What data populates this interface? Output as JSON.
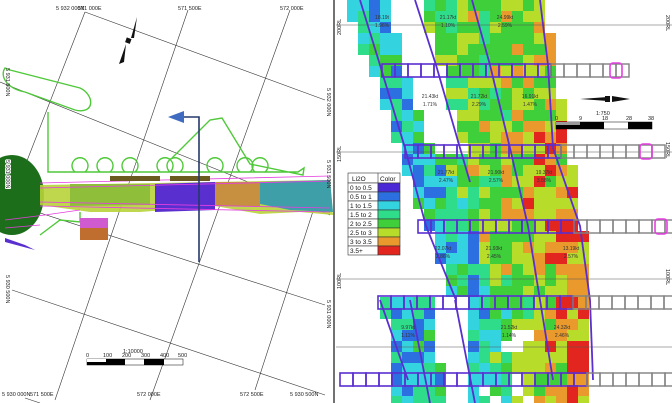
{
  "plan_view": {
    "grid_labels": {
      "n_5932000": "5 932 000N",
      "e_571000": "571 000E",
      "e_571500_top": "571 500E",
      "e_572000_top": "572 000E",
      "n_5931500_left": "5 931 500N",
      "n_5931000_left": "5 931 000N",
      "n_5930500_left": "5 930 500N",
      "n_5932000_right": "5 932 000N",
      "n_5931500_right": "5 931 500N",
      "n_5931000_right": "5 931 000N",
      "n_5930000_bottom": "5 930 000N",
      "e_571500_bottom": "571 500E",
      "e_572000_bottom": "572 000E",
      "e_572500_bottom": "572 500E",
      "n_5930500_bottom": "5 930 500N"
    },
    "scale": {
      "ratio": "1:10000",
      "ticks": [
        "0",
        "100",
        "200",
        "300",
        "400",
        "500"
      ]
    },
    "north_arrow_icon": "north-arrow-icon",
    "section_line_icon": "section-arrow-icon"
  },
  "section_view": {
    "levels": [
      "200RL",
      "150RL",
      "100RL",
      "50RL"
    ],
    "scale": {
      "ratio": "1:750",
      "ticks": [
        "0",
        "9",
        "18",
        "28",
        "38"
      ]
    },
    "blocks": [
      {
        "tonnes": "18.19t",
        "grade": "1.96%"
      },
      {
        "tonnes": "21.17kt",
        "grade": "1.10%"
      },
      {
        "tonnes": "24.99kt",
        "grade": "2.59%"
      },
      {
        "tonnes": "21.43kt",
        "grade": "1.71%"
      },
      {
        "tonnes": "21.72kt",
        "grade": "2.29%"
      },
      {
        "tonnes": "16.91kt",
        "grade": "1.47%"
      },
      {
        "tonnes": "21.77kt",
        "grade": "2.47%"
      },
      {
        "tonnes": "21.90kt",
        "grade": "2.57%"
      },
      {
        "tonnes": "19.37kt",
        "grade": "3.58%"
      },
      {
        "tonnes": "22.07kt",
        "grade": "2.86%"
      },
      {
        "tonnes": "21.93kt",
        "grade": "2.45%"
      },
      {
        "tonnes": "13.19kt",
        "grade": "2.57%"
      },
      {
        "tonnes": "9.97kt",
        "grade": "1.11%"
      },
      {
        "tonnes": "21.52kt",
        "grade": "1.14%"
      },
      {
        "tonnes": "24.32kt",
        "grade": "2.46%"
      }
    ],
    "legend": {
      "header_grade": "Li2O",
      "header_color": "Color",
      "items": [
        {
          "label": "0 to 0.5",
          "color": "#4b2ad6"
        },
        {
          "label": "0.5 to 1",
          "color": "#2b6fe0"
        },
        {
          "label": "1 to 1.5",
          "color": "#34d3e0"
        },
        {
          "label": "1.5 to 2",
          "color": "#2fdc8a"
        },
        {
          "label": "2 to 2.5",
          "color": "#3fcf3a"
        },
        {
          "label": "2.5 to 3",
          "color": "#b8dc2a"
        },
        {
          "label": "3 to 3.5",
          "color": "#ea9a2c"
        },
        {
          "label": "3.5+",
          "color": "#e2261f"
        }
      ]
    },
    "colors": {
      "drive_outline": "#5a2fd0",
      "drive_end": "#e43fe0",
      "drive_waste": "#808080"
    }
  }
}
